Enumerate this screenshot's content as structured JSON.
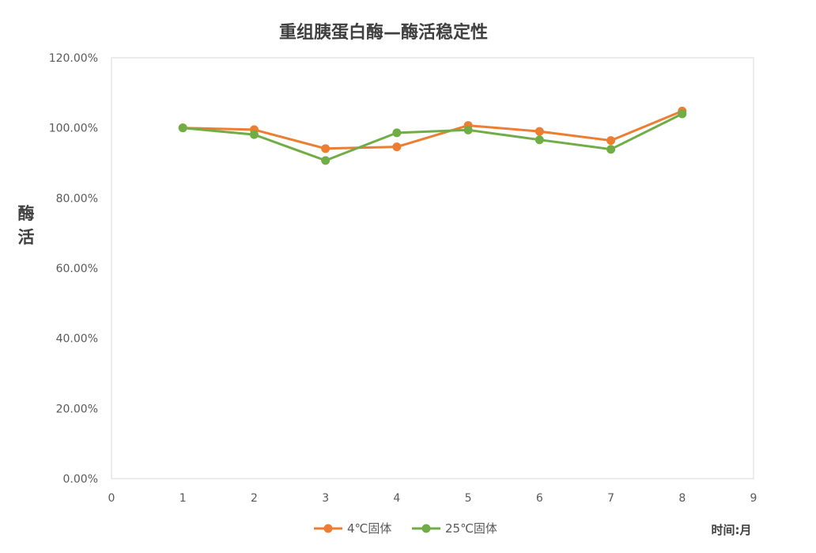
{
  "chart_data": {
    "type": "line",
    "title": "重组胰蛋白酶—酶活稳定性",
    "ylabel": "酶活",
    "xlabel": "时间:月",
    "xlim": [
      0,
      9
    ],
    "ylim": [
      0,
      120
    ],
    "xticks": [
      "0",
      "1",
      "2",
      "3",
      "4",
      "5",
      "6",
      "7",
      "8",
      "9"
    ],
    "yticks": [
      "0.00%",
      "20.00%",
      "40.00%",
      "60.00%",
      "80.00%",
      "100.00%",
      "120.00%"
    ],
    "grid": false,
    "legend_position": "bottom",
    "series": [
      {
        "name": "4℃固体",
        "color": "#ED7D31",
        "x": [
          1,
          2,
          3,
          4,
          5,
          6,
          7,
          8
        ],
        "y": [
          100.0,
          99.5,
          94.1,
          94.6,
          100.7,
          99.0,
          96.4,
          104.8
        ]
      },
      {
        "name": "25℃固体",
        "color": "#70AD47",
        "x": [
          1,
          2,
          3,
          4,
          5,
          6,
          7,
          8
        ],
        "y": [
          100.0,
          98.1,
          90.7,
          98.6,
          99.4,
          96.6,
          93.9,
          104.0
        ]
      }
    ]
  }
}
